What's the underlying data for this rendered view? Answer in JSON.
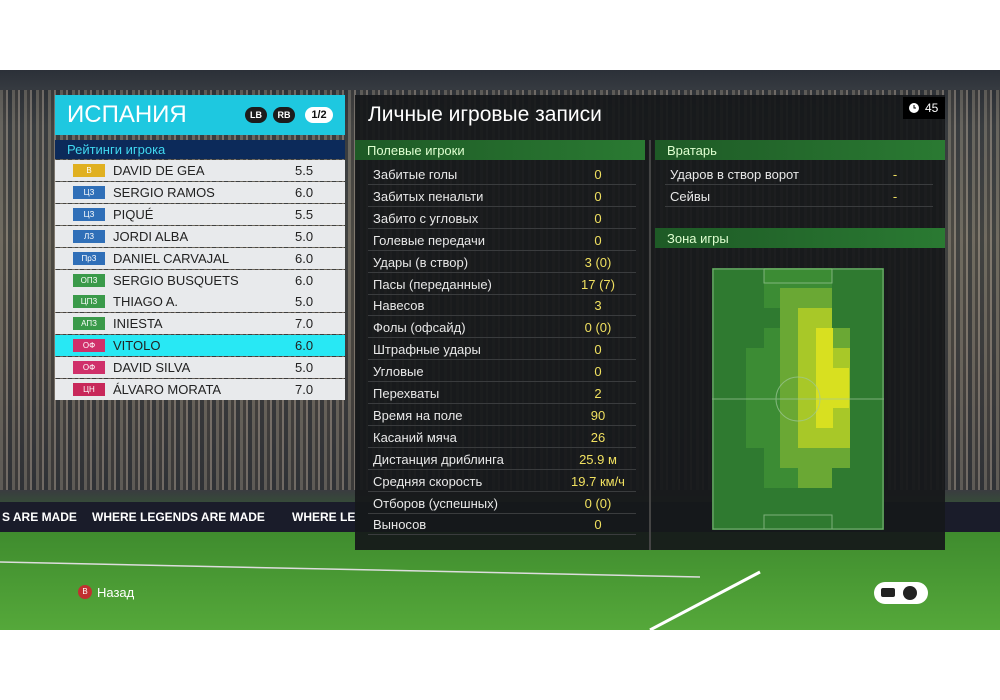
{
  "header": {
    "team": "ИСПАНИЯ",
    "buttons": [
      "LB",
      "RB"
    ],
    "page": "1/2"
  },
  "ratings": {
    "title": "Рейтинги игрока",
    "players": [
      {
        "position": "В",
        "name": "DAVID DE GEA",
        "rating": "5.5",
        "color": "#e0b020"
      },
      {
        "position": "ЦЗ",
        "name": "SERGIO RAMOS",
        "rating": "6.0",
        "color": "#2f6fb8"
      },
      {
        "position": "ЦЗ",
        "name": "PIQUÉ",
        "rating": "5.5",
        "color": "#2f6fb8"
      },
      {
        "position": "ЛЗ",
        "name": "JORDI ALBA",
        "rating": "5.0",
        "color": "#2f6fb8"
      },
      {
        "position": "ПрЗ",
        "name": "DANIEL CARVAJAL",
        "rating": "6.0",
        "color": "#2f6fb8"
      },
      {
        "position": "ОПЗ",
        "name": "SERGIO BUSQUETS",
        "rating": "6.0",
        "color": "#3a9a4a"
      },
      {
        "position": "ЦПЗ",
        "name": "THIAGO A.",
        "rating": "5.0",
        "color": "#3a9a4a"
      },
      {
        "position": "АПЗ",
        "name": "INIESTA",
        "rating": "7.0",
        "color": "#3a9a4a"
      },
      {
        "position": "ОФ",
        "name": "VITOLO",
        "rating": "6.0",
        "color": "#d0306a"
      },
      {
        "position": "ОФ",
        "name": "DAVID SILVA",
        "rating": "5.0",
        "color": "#d0306a"
      },
      {
        "position": "ЦН",
        "name": "ÁLVARO MORATA",
        "rating": "7.0",
        "color": "#c8285a"
      }
    ]
  },
  "record": {
    "title": "Личные игровые записи",
    "timer": "45",
    "field": {
      "title": "Полевые игроки",
      "rows": [
        [
          "Забитые голы",
          "0"
        ],
        [
          "Забитых пенальти",
          "0"
        ],
        [
          "Забито с угловых",
          "0"
        ],
        [
          "Голевые передачи",
          "0"
        ],
        [
          "Удары (в створ)",
          "3 (0)"
        ],
        [
          "Пасы (переданные)",
          "17 (7)"
        ],
        [
          "Навесов",
          "3"
        ],
        [
          "Фолы (офсайд)",
          "0 (0)"
        ],
        [
          "Штрафные удары",
          "0"
        ],
        [
          "Угловые",
          "0"
        ],
        [
          "Перехваты",
          "2"
        ],
        [
          "Время на поле",
          "90"
        ],
        [
          "Касаний мяча",
          "26"
        ],
        [
          "Дистанция дриблинга",
          "25.9 м"
        ],
        [
          "Средняя скорость",
          "19.7 км/ч"
        ],
        [
          "Отборов (успешных)",
          "0 (0)"
        ],
        [
          "Выносов",
          "0"
        ]
      ]
    },
    "goalkeeper": {
      "title": "Вратарь",
      "rows": [
        [
          "Ударов в створ ворот",
          "-"
        ],
        [
          "Сейвы",
          "-"
        ]
      ]
    },
    "zone": {
      "title": "Зона игры"
    }
  },
  "background": {
    "banners": [
      "S ARE MADE",
      "WHERE LEGENDS ARE MADE",
      "WHERE LE"
    ]
  },
  "footer": {
    "back_button": "B",
    "back": "Назад"
  }
}
